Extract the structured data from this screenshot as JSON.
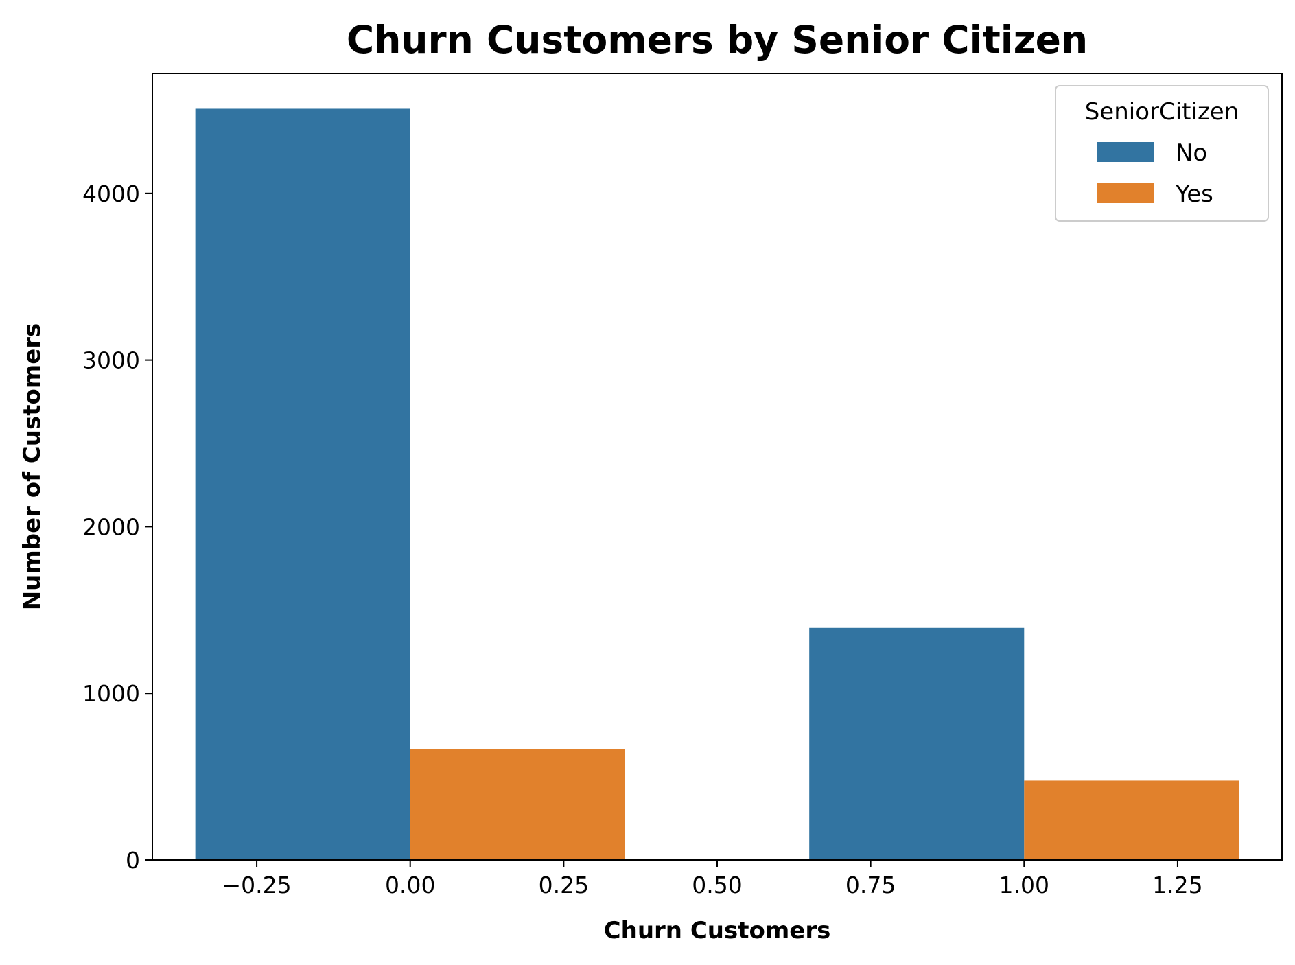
{
  "chart_data": {
    "type": "bar",
    "title": "Churn Customers by Senior Citizen",
    "xlabel": "Churn Customers",
    "ylabel": "Number of Customers",
    "xlim": [
      -0.42,
      1.42
    ],
    "ylim": [
      0,
      4720
    ],
    "xticks": [
      -0.25,
      0,
      0.25,
      0.5,
      0.75,
      1,
      1.25
    ],
    "xtick_labels": [
      "−0.25",
      "0.00",
      "0.25",
      "0.50",
      "0.75",
      "1.00",
      "1.25"
    ],
    "yticks": [
      0,
      1000,
      2000,
      3000,
      4000
    ],
    "ytick_labels": [
      "0",
      "1000",
      "2000",
      "3000",
      "4000"
    ],
    "categories": [
      0,
      1
    ],
    "grid": false,
    "legend": {
      "title": "SeniorCitizen",
      "position": "top-right"
    },
    "series": [
      {
        "name": "No",
        "color": "#3274a1",
        "x": [
          -0.175,
          0.825
        ],
        "values": [
          4508,
          1393
        ]
      },
      {
        "name": "Yes",
        "color": "#e1812c",
        "x": [
          0.175,
          1.175
        ],
        "values": [
          666,
          476
        ]
      }
    ]
  }
}
